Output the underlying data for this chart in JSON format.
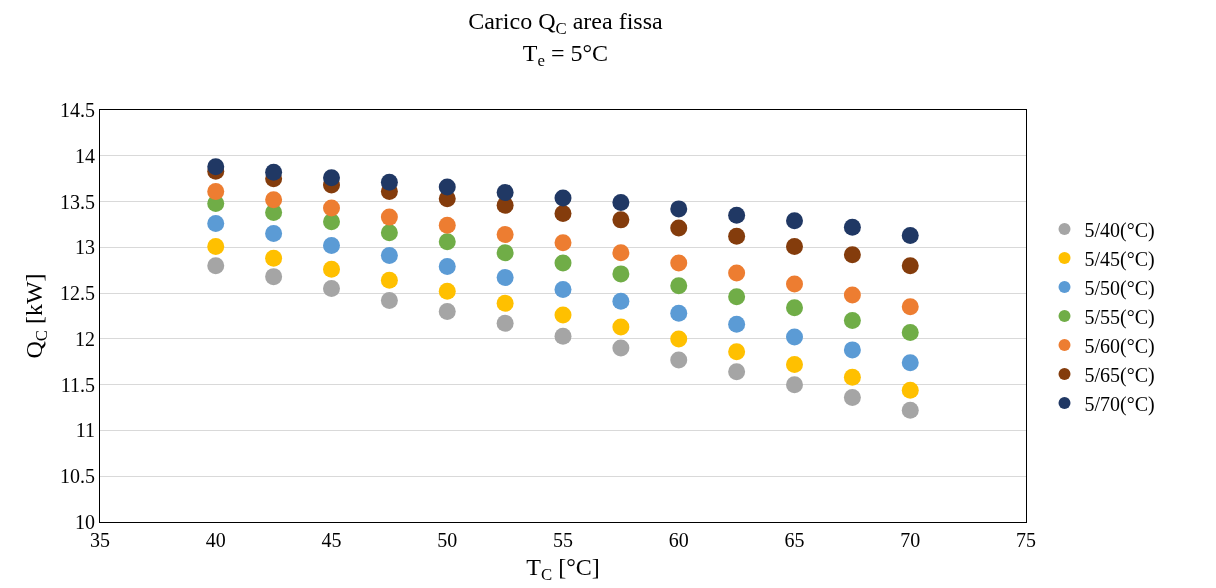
{
  "chart_data": {
    "type": "scatter",
    "title": "Carico Q$_{C}$ area fissa",
    "subtitle": "T$_{e}$ = 5°C",
    "xlabel": "T$_{C}$ [°C]",
    "ylabel": "Q$_{C}$ [kW]",
    "x": [
      40,
      42.5,
      45,
      47.5,
      50,
      52.5,
      55,
      57.5,
      60,
      62.5,
      65,
      67.5,
      70
    ],
    "series": [
      {
        "name": "5/40(°C)",
        "color": "#a5a5a5",
        "values": [
          12.8,
          12.68,
          12.55,
          12.42,
          12.3,
          12.17,
          12.03,
          11.9,
          11.77,
          11.64,
          11.5,
          11.36,
          11.22
        ]
      },
      {
        "name": "5/45(°C)",
        "color": "#ffc000",
        "values": [
          13.01,
          12.88,
          12.76,
          12.64,
          12.52,
          12.39,
          12.26,
          12.13,
          12.0,
          11.86,
          11.72,
          11.58,
          11.44
        ]
      },
      {
        "name": "5/50(°C)",
        "color": "#5b9bd5",
        "values": [
          13.26,
          13.15,
          13.02,
          12.91,
          12.79,
          12.67,
          12.54,
          12.41,
          12.28,
          12.16,
          12.02,
          11.88,
          11.74
        ]
      },
      {
        "name": "5/55(°C)",
        "color": "#70ad47",
        "values": [
          13.48,
          13.38,
          13.28,
          13.16,
          13.06,
          12.94,
          12.83,
          12.71,
          12.58,
          12.46,
          12.34,
          12.2,
          12.07
        ]
      },
      {
        "name": "5/60(°C)",
        "color": "#ed7d31",
        "values": [
          13.61,
          13.52,
          13.43,
          13.33,
          13.24,
          13.14,
          13.05,
          12.94,
          12.83,
          12.72,
          12.6,
          12.48,
          12.35
        ]
      },
      {
        "name": "5/65(°C)",
        "color": "#843c0c",
        "values": [
          13.83,
          13.75,
          13.68,
          13.61,
          13.53,
          13.46,
          13.37,
          13.3,
          13.21,
          13.12,
          13.01,
          12.92,
          12.8
        ]
      },
      {
        "name": "5/70(°C)",
        "color": "#203864",
        "values": [
          13.88,
          13.82,
          13.76,
          13.71,
          13.66,
          13.6,
          13.54,
          13.49,
          13.42,
          13.35,
          13.29,
          13.22,
          13.13
        ]
      }
    ],
    "xlim": [
      35,
      75
    ],
    "xticks": [
      35,
      40,
      45,
      50,
      55,
      60,
      65,
      70,
      75
    ],
    "ylim": [
      10,
      14.5
    ],
    "yticks": [
      10,
      {
        "value": 10.5,
        "label": "10.5"
      },
      11,
      {
        "value": 11.5,
        "label": "11.5"
      },
      12,
      {
        "value": 12.5,
        "label": "12.5"
      },
      13,
      {
        "value": 13.5,
        "label": "13.5"
      },
      14,
      {
        "value": 14.5,
        "label": "14.5"
      }
    ],
    "grid": "y",
    "legend": "right",
    "marker": "circle"
  }
}
